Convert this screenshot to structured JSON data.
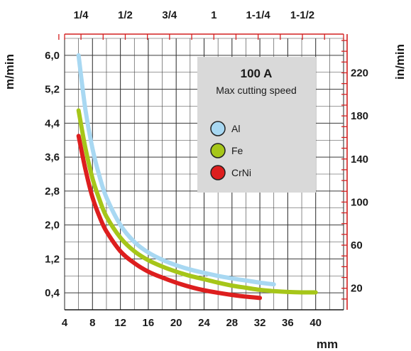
{
  "colors": {
    "grid": "#3a3a3a",
    "frame_red": "#d42020",
    "legend_bg": "#d9d9d9",
    "al": "#a8d8f2",
    "fe": "#a6c619",
    "crni": "#dd1e1e"
  },
  "chart_data": {
    "type": "line",
    "title": "100 A",
    "subtitle": "Max cutting speed",
    "xlabel": "mm",
    "ylabel_left": "m/min",
    "ylabel_right": "in/min",
    "top_axis_label": "",
    "grid": true,
    "legend_position": "top-right",
    "x_range": [
      4,
      44
    ],
    "y_range": [
      0,
      6.4
    ],
    "x_ticks": [
      "4",
      "8",
      "12",
      "16",
      "20",
      "24",
      "28",
      "32",
      "36",
      "40"
    ],
    "x_tick_values": [
      4,
      8,
      12,
      16,
      20,
      24,
      28,
      32,
      36,
      40
    ],
    "y_left_ticks": [
      "0,4",
      "1,2",
      "2,0",
      "2,8",
      "3,6",
      "4,4",
      "5,2",
      "6,0"
    ],
    "y_left_tick_values": [
      0.4,
      1.2,
      2.0,
      2.8,
      3.6,
      4.4,
      5.2,
      6.0
    ],
    "y_right_ticks": [
      "20",
      "60",
      "100",
      "140",
      "180",
      "220"
    ],
    "y_right_tick_values_in_per_min": [
      20,
      60,
      100,
      140,
      180,
      220
    ],
    "top_ticks": [
      "1/4",
      "1/2",
      "3/4",
      "1",
      "1-1/4",
      "1-1/2"
    ],
    "top_tick_values_in": [
      0.25,
      0.5,
      0.75,
      1.0,
      1.25,
      1.5
    ],
    "series": [
      {
        "name": "Al",
        "color_key": "al",
        "x": [
          6,
          7,
          8,
          9,
          10,
          12,
          14,
          16,
          18,
          20,
          22,
          24,
          26,
          28,
          30,
          32,
          34
        ],
        "y": [
          6.0,
          4.7,
          3.8,
          3.15,
          2.65,
          2.0,
          1.6,
          1.35,
          1.18,
          1.05,
          0.95,
          0.87,
          0.8,
          0.74,
          0.69,
          0.64,
          0.6
        ]
      },
      {
        "name": "Fe",
        "color_key": "fe",
        "x": [
          6,
          7,
          8,
          9,
          10,
          12,
          14,
          16,
          18,
          20,
          22,
          24,
          26,
          28,
          30,
          32,
          34,
          36,
          38,
          40
        ],
        "y": [
          4.7,
          3.8,
          3.1,
          2.6,
          2.2,
          1.7,
          1.38,
          1.17,
          1.02,
          0.9,
          0.8,
          0.72,
          0.64,
          0.57,
          0.52,
          0.47,
          0.44,
          0.42,
          0.41,
          0.41
        ]
      },
      {
        "name": "CrNi",
        "color_key": "crni",
        "x": [
          6,
          7,
          8,
          9,
          10,
          12,
          14,
          16,
          18,
          20,
          22,
          24,
          26,
          28,
          30,
          32
        ],
        "y": [
          4.1,
          3.3,
          2.65,
          2.2,
          1.85,
          1.38,
          1.1,
          0.9,
          0.76,
          0.64,
          0.54,
          0.46,
          0.4,
          0.35,
          0.31,
          0.28
        ]
      }
    ]
  }
}
